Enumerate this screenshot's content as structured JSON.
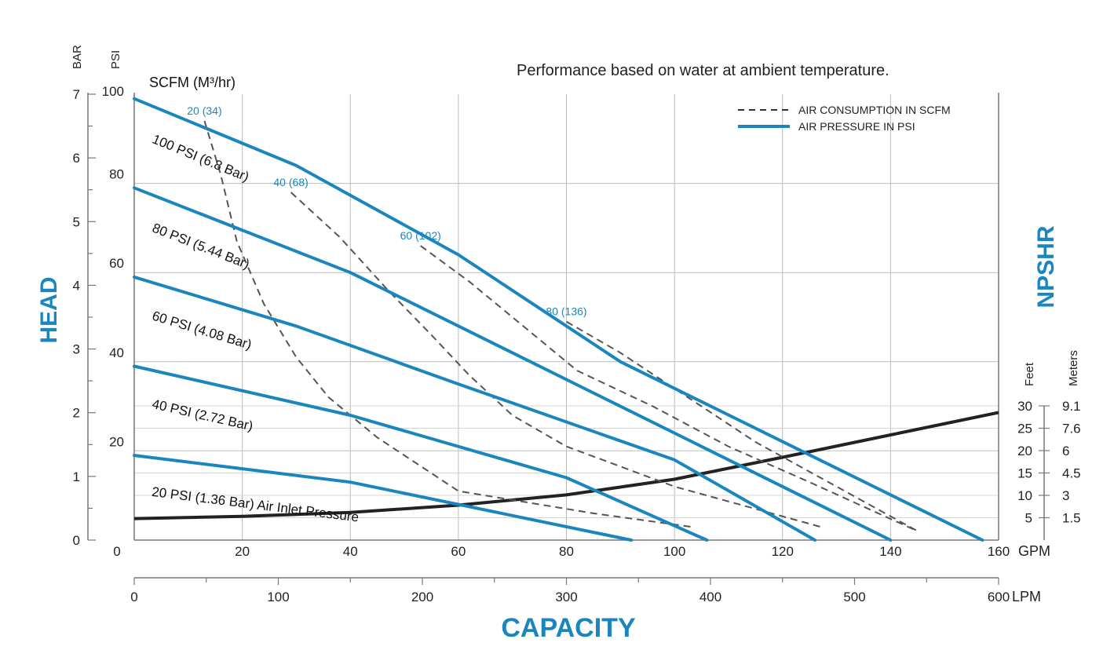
{
  "chart_data": {
    "type": "line",
    "note": "Performance based on water at ambient temperature.",
    "scfm_header": "SCFM (M³/hr)",
    "y_title": "HEAD",
    "x_title": "CAPACITY",
    "npshr_title": "NPSHR",
    "bar_header": "BAR",
    "psi_header": "PSI",
    "feet_header": "Feet",
    "meters_header": "Meters",
    "gpm_unit": "GPM",
    "lpm_unit": "LPM",
    "gpm_ticks": [
      "0",
      "20",
      "40",
      "60",
      "80",
      "100",
      "120",
      "140",
      "160"
    ],
    "gpm_range": [
      0,
      160
    ],
    "lpm_ticks": [
      "0",
      "100",
      "200",
      "300",
      "400",
      "500",
      "600"
    ],
    "psi_ticks": [
      "0",
      "20",
      "40",
      "60",
      "80",
      "100"
    ],
    "psi_range": [
      0,
      100
    ],
    "bar_ticks": [
      "0",
      "1",
      "2",
      "3",
      "4",
      "5",
      "6",
      "7"
    ],
    "npshr_feet_ticks": [
      "5",
      "10",
      "15",
      "20",
      "25",
      "30"
    ],
    "npshr_meter_ticks": [
      "1.5",
      "3",
      "4.5",
      "6",
      "7.6",
      "9.1"
    ],
    "npshr_feet_range": [
      0,
      30
    ],
    "legend": {
      "dashed": "AIR CONSUMPTION IN SCFM",
      "solid": "AIR PRESSURE IN PSI"
    },
    "colors": {
      "pressure": "#1a86bd",
      "scfm": "#555555",
      "npshr": "#222222",
      "grid": "#bbbbbb"
    },
    "pressure_curves": [
      {
        "label": "100 PSI (6.8 Bar)",
        "points": [
          [
            0,
            99
          ],
          [
            30,
            84
          ],
          [
            60,
            64
          ],
          [
            90,
            40
          ],
          [
            157,
            0
          ]
        ]
      },
      {
        "label": "80 PSI (5.44 Bar)",
        "points": [
          [
            0,
            79
          ],
          [
            40,
            60
          ],
          [
            80,
            36
          ],
          [
            140,
            0
          ]
        ]
      },
      {
        "label": "60 PSI (4.08 Bar)",
        "points": [
          [
            0,
            59
          ],
          [
            30,
            48
          ],
          [
            60,
            35
          ],
          [
            100,
            18
          ],
          [
            126,
            0
          ]
        ]
      },
      {
        "label": "40 PSI (2.72 Bar)",
        "points": [
          [
            0,
            39
          ],
          [
            40,
            28
          ],
          [
            80,
            14
          ],
          [
            106,
            0
          ]
        ]
      },
      {
        "label": "20 PSI (1.36 Bar) Air Inlet Pressure",
        "points": [
          [
            0,
            19
          ],
          [
            20,
            16
          ],
          [
            40,
            13
          ],
          [
            60,
            8
          ],
          [
            92,
            0
          ]
        ]
      }
    ],
    "scfm_curves": [
      {
        "label": "20 (34)",
        "points": [
          [
            13,
            94
          ],
          [
            16,
            82
          ],
          [
            19,
            67
          ],
          [
            24,
            53
          ],
          [
            30,
            41
          ],
          [
            36,
            32
          ],
          [
            45,
            23
          ],
          [
            60,
            11
          ],
          [
            85,
            6
          ],
          [
            103,
            3
          ]
        ]
      },
      {
        "label": "40 (68)",
        "points": [
          [
            29,
            78
          ],
          [
            38,
            68
          ],
          [
            47,
            56
          ],
          [
            55,
            46
          ],
          [
            62,
            37
          ],
          [
            70,
            28
          ],
          [
            80,
            21
          ],
          [
            100,
            12
          ],
          [
            127,
            3
          ]
        ]
      },
      {
        "label": "60 (102)",
        "points": [
          [
            53,
            66
          ],
          [
            62,
            58
          ],
          [
            72,
            48
          ],
          [
            82,
            38
          ],
          [
            96,
            30
          ],
          [
            110,
            21
          ],
          [
            125,
            13
          ],
          [
            145,
            2
          ]
        ]
      },
      {
        "label": "80 (136)",
        "points": [
          [
            80,
            49
          ],
          [
            90,
            42
          ],
          [
            100,
            34
          ],
          [
            115,
            22
          ],
          [
            130,
            12
          ],
          [
            145,
            2
          ]
        ]
      }
    ],
    "npshr_curve": {
      "points": [
        [
          0,
          4.8
        ],
        [
          20,
          5.3
        ],
        [
          40,
          6.2
        ],
        [
          60,
          7.8
        ],
        [
          80,
          10.1
        ],
        [
          100,
          13.6
        ],
        [
          120,
          18.5
        ],
        [
          140,
          23.5
        ],
        [
          160,
          28.5
        ]
      ]
    }
  }
}
